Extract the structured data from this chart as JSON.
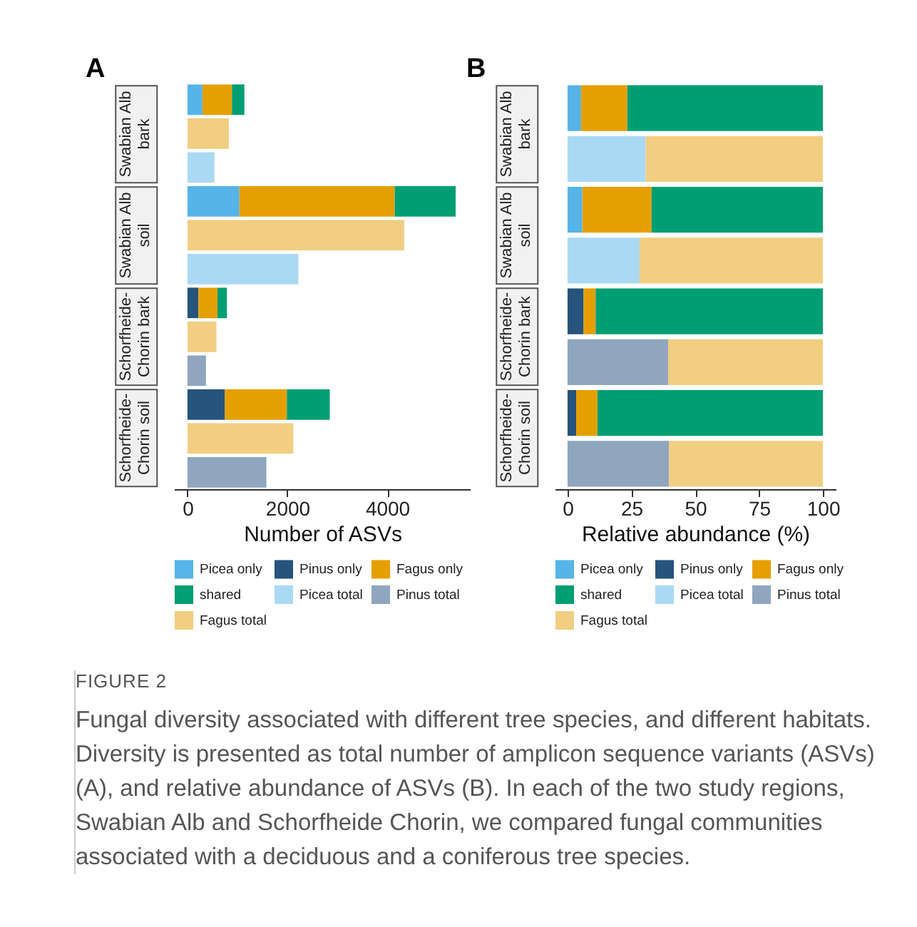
{
  "chart_data": [
    {
      "type": "bar",
      "orientation": "horizontal",
      "stacked": true,
      "title": "A",
      "xlabel": "Number of ASVs",
      "categories": [
        null,
        null,
        null,
        null,
        null,
        null,
        null,
        null,
        null,
        null,
        null,
        null
      ],
      "xlim": [
        -270,
        5670
      ],
      "xticks": [
        0,
        2000,
        4000
      ],
      "tick_labels": "x",
      "legend": "bottom",
      "annotations": [
        "Swabian Alb bark",
        "Swabian Alb soil",
        "Schorfheide-Chorin bark",
        "Schorfheide-Chorin soil"
      ],
      "series": [
        {
          "name": "Picea only",
          "color": "#56b4e9",
          "values": [
            300,
            null,
            null,
            1040,
            null,
            null,
            null,
            null,
            null,
            null,
            null,
            null
          ]
        },
        {
          "name": "Pinus only",
          "color": "#26547c",
          "values": [
            null,
            null,
            null,
            null,
            null,
            null,
            220,
            null,
            null,
            750,
            null,
            null
          ]
        },
        {
          "name": "Fagus only",
          "color": "#e69f00",
          "values": [
            590,
            null,
            null,
            3110,
            null,
            null,
            380,
            null,
            null,
            1240,
            null,
            null
          ]
        },
        {
          "name": "shared",
          "color": "#009e73",
          "values": [
            250,
            null,
            null,
            1220,
            null,
            null,
            190,
            null,
            null,
            860,
            null,
            null
          ]
        },
        {
          "name": "Picea total",
          "color": "#aad9f3",
          "values": [
            null,
            null,
            540,
            null,
            null,
            2220,
            null,
            null,
            null,
            null,
            null,
            null
          ]
        },
        {
          "name": "Pinus total",
          "color": "#8fa6be",
          "values": [
            null,
            null,
            null,
            null,
            null,
            null,
            null,
            null,
            370,
            null,
            null,
            1580
          ]
        },
        {
          "name": "Fagus total",
          "color": "#f1ce82",
          "values": [
            null,
            830,
            null,
            null,
            4340,
            null,
            null,
            580,
            null,
            null,
            2120,
            null
          ]
        }
      ]
    },
    {
      "type": "bar",
      "orientation": "horizontal",
      "stacked": true,
      "title": "B",
      "xlabel": "Relative abundance (%)",
      "categories": [
        null,
        null,
        null,
        null,
        null,
        null,
        null,
        null
      ],
      "xlim": [
        -5,
        105
      ],
      "xticks": [
        0,
        25,
        50,
        75,
        100
      ],
      "tick_labels": "x",
      "legend": "bottom",
      "annotations": [
        "Swabian Alb bark",
        "Swabian Alb soil",
        "Schorfheide-Chorin bark",
        "Schorfheide-Chorin soil"
      ],
      "series": [
        {
          "name": "Picea only",
          "color": "#56b4e9",
          "values": [
            5.3,
            null,
            5.8,
            null,
            null,
            null,
            null,
            null
          ]
        },
        {
          "name": "Pinus only",
          "color": "#26547c",
          "values": [
            null,
            null,
            null,
            null,
            6.3,
            null,
            3.4,
            null
          ]
        },
        {
          "name": "Fagus only",
          "color": "#e69f00",
          "values": [
            18.1,
            null,
            27.1,
            null,
            4.7,
            null,
            8.3,
            null
          ]
        },
        {
          "name": "shared",
          "color": "#009e73",
          "values": [
            76.6,
            null,
            67.1,
            null,
            89.0,
            null,
            88.3,
            null
          ]
        },
        {
          "name": "Picea total",
          "color": "#aad9f3",
          "values": [
            null,
            30.6,
            null,
            28.2,
            null,
            null,
            null,
            null
          ]
        },
        {
          "name": "Pinus total",
          "color": "#8fa6be",
          "values": [
            null,
            null,
            null,
            null,
            null,
            39.4,
            null,
            39.7
          ]
        },
        {
          "name": "Fagus total",
          "color": "#f1ce82",
          "values": [
            null,
            69.4,
            null,
            71.8,
            null,
            60.6,
            null,
            60.3
          ]
        }
      ]
    },
    {
      "type": "other",
      "title": "FIGURE 2",
      "annotations": [
        "Fungal diversity associated with different tree species, and different habitats. Diversity is presented as total number of amplicon sequence variants (ASVs) (A), and relative abundance of ASVs (B). In each of the two study regions, Swabian Alb and Schorfheide Chorin, we compared fungal communities associated with a deciduous and a coniferous tree species."
      ]
    }
  ]
}
